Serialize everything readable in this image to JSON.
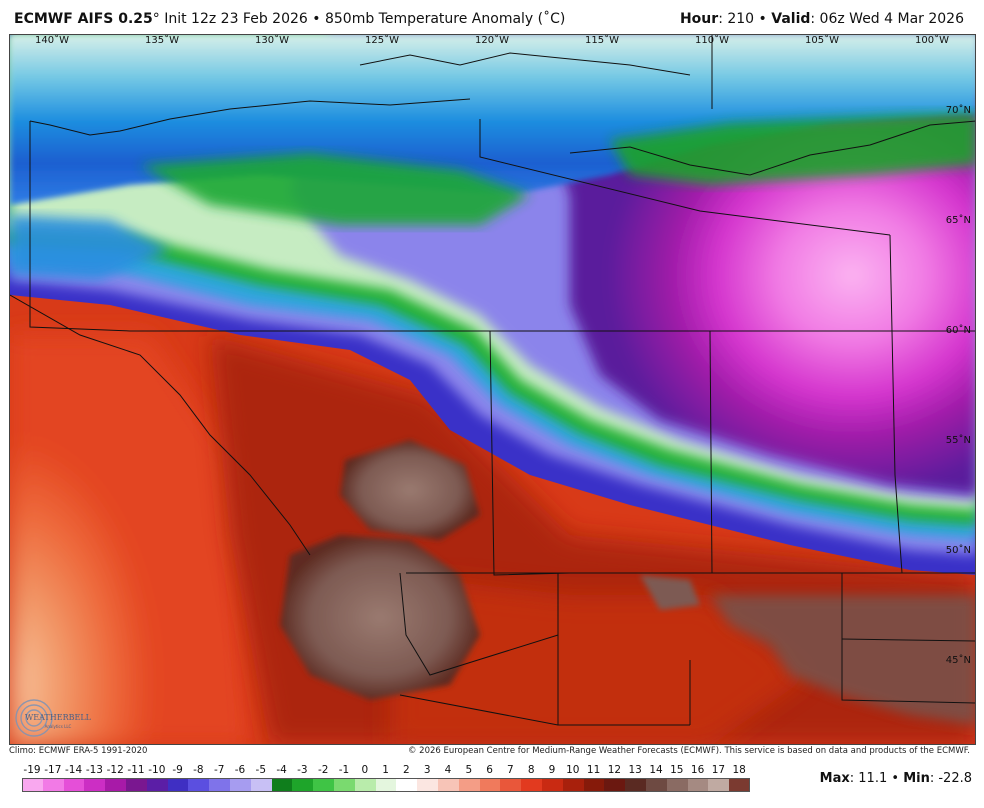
{
  "header": {
    "model": "ECMWF AIFS 0.25",
    "degree": "°",
    "init": "Init 12z 23 Feb 2026",
    "bullet": "•",
    "field": "850mb Temperature Anomaly (˚C)",
    "hour_label": "Hour",
    "hour_value": ": 210",
    "valid_label": "Valid",
    "valid_value": ": 06z Wed 4 Mar 2026"
  },
  "map": {
    "longitude_labels": [
      "140˚W",
      "135˚W",
      "130˚W",
      "125˚W",
      "120˚W",
      "115˚W",
      "110˚W",
      "105˚W",
      "100˚W"
    ],
    "latitude_labels": [
      "70˚N",
      "65˚N",
      "60˚N",
      "55˚N",
      "50˚N",
      "45˚N"
    ],
    "logo_text": "WEATHERBELL",
    "logo_subtext": "Analytics LLC"
  },
  "footer": {
    "climo": "Climo: ECMWF ERA-5 1991-2020",
    "copyright": "© 2026 European Centre for Medium-Range Weather Forecasts (ECMWF). This service is based on data and products of the ECMWF."
  },
  "legend": {
    "labels": [
      "-19",
      "-17",
      "-14",
      "-13",
      "-12",
      "-11",
      "-10",
      "-9",
      "-8",
      "-7",
      "-6",
      "-5",
      "-4",
      "-3",
      "-2",
      "-1",
      "0",
      "1",
      "2",
      "3",
      "4",
      "5",
      "6",
      "7",
      "8",
      "9",
      "10",
      "11",
      "12",
      "13",
      "14",
      "15",
      "16",
      "17",
      "18"
    ],
    "colors": [
      "#f9a8ef",
      "#f27ae6",
      "#e54fd8",
      "#cc2ec4",
      "#a81aa8",
      "#7a1790",
      "#5b1ea6",
      "#3f2fc3",
      "#5b4fe0",
      "#7f73ea",
      "#a69cf0",
      "#c8c0f5",
      "#0f7e1c",
      "#1ea52a",
      "#3fc445",
      "#7ada6f",
      "#b9ecab",
      "#e4f6de",
      "#ffffff",
      "#fbe6e1",
      "#f7c4b7",
      "#f49d86",
      "#f07a5c",
      "#e9573a",
      "#e23a1f",
      "#c92a12",
      "#a8200c",
      "#861a0a",
      "#6b1810",
      "#5a2a22",
      "#6e4a42",
      "#8a6b63",
      "#a58a82",
      "#c0aaa2",
      "#7b3a30"
    ]
  },
  "stats": {
    "max_label": "Max",
    "max_value": ": 11.1",
    "sep": "•",
    "min_label": "Min",
    "min_value": ": -22.8"
  }
}
